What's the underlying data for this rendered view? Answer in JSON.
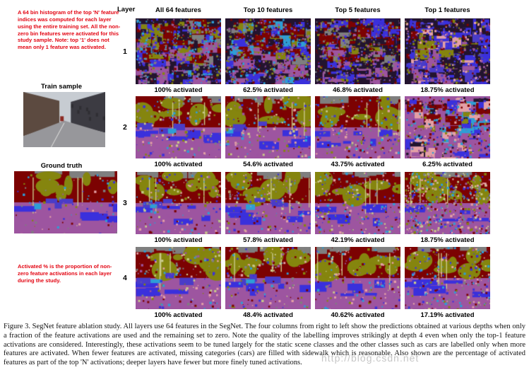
{
  "palette": {
    "sky": "#7f7f7f",
    "building": "#7c0202",
    "tree": "#85850e",
    "road": "#9d55a0",
    "sidewalk": "#3a30dc",
    "car": "#4a3cc8",
    "pole": "#c9c98a",
    "sign": "#e4a0a6",
    "cyan": "#2e9ed6",
    "dark": "#23142e",
    "black": "#121212"
  },
  "sidebar": {
    "note_top": "A 64 bin histogram of the top 'N' feature indices was computed for each layer using the entire training set. All the non-zero bin features were activated for this study sample. Note: top '1' does not mean only 1 feature was activated.",
    "train_sample_label": "Train sample",
    "ground_truth_label": "Ground truth",
    "note_bottom": "Activated % is the proportion of non-zero feature activations in each layer during the study.",
    "train_image": {
      "scene": "photo",
      "seed": 7
    },
    "ground_truth_image": {
      "scene": "street",
      "seed": 9,
      "noise": 0.12,
      "trees": 7,
      "walk": 5,
      "cars": true
    }
  },
  "grid": {
    "layer_header": "Layer",
    "columns": [
      "All 64 features",
      "Top 10 features",
      "Top 5 features",
      "Top 1 features"
    ],
    "rows": [
      {
        "layer": "1",
        "cells": [
          {
            "label": "100% activated",
            "scene": "noisy",
            "seed": 101,
            "noise": 0.9,
            "mix": {
              "building": 0.26,
              "tree": 0.16,
              "sidewalk": 0.16,
              "road": 0.13,
              "cyan": 0.07,
              "sky": 0.07,
              "dark": 0.15
            }
          },
          {
            "label": "62.5% activated",
            "scene": "noisy",
            "seed": 102,
            "noise": 0.9,
            "mix": {
              "building": 0.22,
              "dark": 0.2,
              "sidewalk": 0.18,
              "road": 0.14,
              "tree": 0.12,
              "sky": 0.07,
              "cyan": 0.07
            }
          },
          {
            "label": "46.8% activated",
            "scene": "noisy",
            "seed": 103,
            "noise": 0.85,
            "mix": {
              "dark": 0.28,
              "building": 0.22,
              "sidewalk": 0.2,
              "road": 0.12,
              "tree": 0.1,
              "sky": 0.08
            }
          },
          {
            "label": "18.75% activated",
            "scene": "noisy",
            "seed": 104,
            "noise": 0.8,
            "mix": {
              "sidewalk": 0.36,
              "dark": 0.26,
              "road": 0.16,
              "car": 0.1,
              "building": 0.05,
              "tree": 0.04,
              "sign": 0.03
            }
          }
        ]
      },
      {
        "layer": "2",
        "cells": [
          {
            "label": "100% activated",
            "scene": "street",
            "seed": 201,
            "noise": 0.3,
            "trees": 9,
            "walk": 6,
            "cars": true
          },
          {
            "label": "54.6% activated",
            "scene": "street",
            "seed": 202,
            "noise": 0.35,
            "trees": 8,
            "walk": 6,
            "cars": true
          },
          {
            "label": "43.75% activated",
            "scene": "street",
            "seed": 203,
            "noise": 0.4,
            "trees": 8,
            "walk": 6,
            "cars": false
          },
          {
            "label": "6.25% activated",
            "scene": "noisy",
            "seed": 204,
            "noise": 0.6,
            "bg": "road",
            "mix": {
              "road": 0.4,
              "sign": 0.2,
              "cyan": 0.1,
              "sidewalk": 0.1,
              "building": 0.08,
              "dark": 0.07,
              "tree": 0.05
            }
          }
        ]
      },
      {
        "layer": "3",
        "cells": [
          {
            "label": "100% activated",
            "scene": "street",
            "seed": 301,
            "noise": 0.3,
            "trees": 9,
            "walk": 5,
            "cars": true
          },
          {
            "label": "57.8% activated",
            "scene": "street",
            "seed": 302,
            "noise": 0.35,
            "trees": 9,
            "walk": 5,
            "cars": true
          },
          {
            "label": "42.19% activated",
            "scene": "street",
            "seed": 303,
            "noise": 0.45,
            "trees": 8,
            "walk": 5,
            "cars": false
          },
          {
            "label": "18.75% activated",
            "scene": "street",
            "seed": 304,
            "noise": 0.95,
            "trees": 10,
            "walk": 4,
            "cars": false
          }
        ]
      },
      {
        "layer": "4",
        "cells": [
          {
            "label": "100% activated",
            "scene": "street",
            "seed": 401,
            "noise": 0.28,
            "trees": 9,
            "walk": 6,
            "cars": true
          },
          {
            "label": "48.4% activated",
            "scene": "street",
            "seed": 402,
            "noise": 0.3,
            "trees": 9,
            "walk": 6,
            "cars": true
          },
          {
            "label": "40.62% activated",
            "scene": "street",
            "seed": 403,
            "noise": 0.33,
            "trees": 8,
            "walk": 6,
            "cars": false
          },
          {
            "label": "17.19% activated",
            "scene": "street",
            "seed": 404,
            "noise": 0.45,
            "trees": 8,
            "walk": 6,
            "cars": false
          }
        ]
      }
    ]
  },
  "caption": "Figure 3. SegNet feature ablation study. All layers use 64 features in the SegNet. The four columns from right to left show the predictions obtained at various depths when only a fraction of the feature activations are used and the remaining set to zero. Note the quality of the labelling improves strikingly at depth 4 even when only the top-1 feature activations are considered. Interestingly, these activations seem to be tuned largely for the static scene classes and the other classes such as cars are labelled only when more features are activated. When fewer features are activated, missing categories (cars) are filled with sidewalk which is reasonable. Also shown are the percentage of activated features as part of the top 'N' activations; deeper layers have fewer but more finely tuned activations.",
  "watermark": "http://blog.csdn.net"
}
